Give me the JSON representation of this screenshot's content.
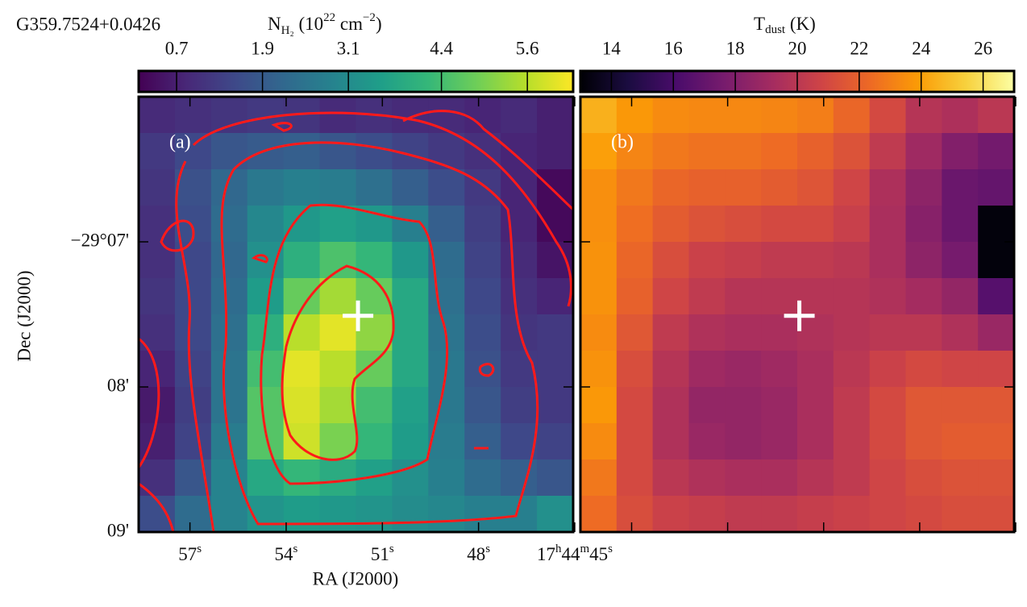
{
  "chart_data": [
    {
      "type": "heatmap",
      "title": "G359.7524+0.0426",
      "panel_label": "(a)",
      "xlabel": "RA (J2000)",
      "ylabel": "Dec (J2000)",
      "xlim": [
        58.6,
        45.05
      ],
      "ylim": [
        9.0,
        6.0
      ],
      "xticks": [
        {
          "value": 57,
          "label": [
            "57",
            "s"
          ]
        },
        {
          "value": 54,
          "label": [
            "54",
            "s"
          ]
        },
        {
          "value": 51,
          "label": [
            "51",
            "s"
          ]
        },
        {
          "value": 48,
          "label": [
            "48",
            "s"
          ]
        },
        {
          "value": 45,
          "label": [
            "17",
            "h",
            "44",
            "m",
            "45",
            "s"
          ]
        }
      ],
      "yticks": [
        {
          "value": 7,
          "label": "−29°07'"
        },
        {
          "value": 8,
          "label": "08'"
        },
        {
          "value": 9,
          "label": "09'"
        }
      ],
      "colorbar": {
        "label": [
          "N",
          "H₂",
          " (10",
          "22",
          " cm",
          "−2",
          ")"
        ],
        "colormap": "viridis",
        "clim": [
          0.17,
          6.24
        ],
        "ticks": [
          0.7,
          1.9,
          3.1,
          4.4,
          5.6
        ]
      },
      "marker": {
        "x": 51.76,
        "y": 7.51
      },
      "z": [
        [
          0.9,
          1.0,
          1.1,
          1.2,
          1.1,
          0.9,
          1.0,
          0.9,
          0.9,
          0.8,
          0.9,
          0.7
        ],
        [
          1.2,
          1.5,
          1.8,
          1.9,
          2.0,
          1.8,
          1.6,
          1.4,
          1.2,
          1.0,
          0.8,
          0.7
        ],
        [
          1.1,
          1.7,
          2.2,
          2.6,
          2.8,
          2.7,
          2.4,
          2.0,
          1.6,
          1.2,
          0.8,
          0.3
        ],
        [
          1.0,
          1.6,
          2.3,
          3.0,
          3.4,
          3.6,
          3.4,
          2.8,
          2.0,
          1.3,
          0.8,
          0.3
        ],
        [
          1.0,
          1.5,
          2.2,
          3.2,
          4.0,
          4.5,
          4.2,
          3.4,
          2.3,
          1.4,
          0.9,
          0.5
        ],
        [
          1.1,
          1.5,
          2.3,
          3.5,
          4.8,
          5.4,
          4.8,
          3.8,
          2.4,
          1.5,
          1.0,
          0.8
        ],
        [
          1.0,
          1.5,
          2.4,
          4.0,
          5.6,
          6.0,
          5.2,
          3.8,
          2.5,
          1.6,
          1.1,
          1.2
        ],
        [
          0.8,
          1.4,
          2.5,
          4.4,
          6.0,
          5.6,
          4.8,
          3.8,
          2.6,
          1.7,
          1.2,
          1.2
        ],
        [
          0.6,
          1.3,
          2.5,
          4.6,
          5.9,
          5.4,
          4.4,
          3.6,
          2.6,
          1.8,
          1.3,
          1.2
        ],
        [
          0.7,
          1.4,
          2.7,
          4.6,
          5.8,
          5.0,
          4.2,
          3.5,
          2.7,
          2.0,
          1.5,
          1.4
        ],
        [
          1.0,
          1.8,
          2.9,
          3.8,
          4.2,
          3.9,
          3.6,
          3.2,
          2.8,
          2.3,
          2.0,
          1.8
        ],
        [
          1.6,
          2.3,
          2.9,
          3.3,
          3.5,
          3.4,
          3.3,
          3.1,
          3.0,
          2.8,
          2.8,
          3.2
        ]
      ]
    },
    {
      "type": "heatmap",
      "panel_label": "(b)",
      "colorbar": {
        "label": [
          "T",
          "dust",
          " (K)"
        ],
        "colormap": "inferno",
        "clim": [
          13.0,
          27.0
        ],
        "ticks": [
          14,
          16,
          18,
          20,
          22,
          24,
          26
        ]
      },
      "z": [
        [
          24.5,
          23.8,
          23.4,
          23.3,
          23.3,
          23.2,
          23.0,
          22.2,
          21.0,
          19.8,
          19.5,
          20.0
        ],
        [
          24.0,
          23.2,
          22.8,
          22.6,
          22.6,
          22.4,
          22.0,
          21.4,
          20.2,
          19.0,
          18.0,
          17.5
        ],
        [
          23.5,
          22.8,
          22.2,
          22.0,
          22.0,
          21.8,
          21.5,
          20.8,
          19.5,
          18.4,
          17.2,
          17.0
        ],
        [
          23.5,
          22.5,
          21.8,
          21.4,
          21.2,
          21.0,
          21.0,
          20.5,
          19.4,
          18.2,
          17.2,
          13.2
        ],
        [
          23.6,
          22.2,
          21.2,
          20.6,
          20.4,
          20.2,
          20.2,
          20.0,
          19.4,
          18.4,
          17.6,
          13.2
        ],
        [
          23.6,
          22.0,
          20.8,
          20.2,
          19.8,
          19.8,
          19.8,
          19.8,
          19.6,
          19.2,
          18.6,
          16.5
        ],
        [
          23.4,
          21.6,
          20.2,
          19.6,
          19.4,
          19.4,
          19.6,
          19.8,
          20.0,
          20.0,
          19.6,
          18.8
        ],
        [
          23.6,
          21.2,
          19.8,
          19.0,
          18.8,
          19.0,
          19.4,
          20.0,
          20.6,
          21.0,
          20.8,
          20.8
        ],
        [
          23.8,
          21.0,
          19.6,
          18.6,
          18.6,
          18.8,
          19.4,
          20.2,
          21.0,
          21.6,
          21.6,
          21.6
        ],
        [
          23.4,
          21.0,
          19.6,
          18.8,
          18.6,
          18.8,
          19.4,
          20.2,
          21.0,
          21.6,
          21.8,
          21.8
        ],
        [
          22.8,
          21.0,
          20.0,
          19.6,
          19.4,
          19.4,
          19.8,
          20.2,
          20.8,
          21.2,
          21.4,
          21.4
        ],
        [
          22.4,
          21.2,
          20.6,
          20.4,
          20.2,
          20.2,
          20.4,
          20.6,
          20.8,
          21.0,
          21.2,
          21.2
        ]
      ]
    }
  ]
}
